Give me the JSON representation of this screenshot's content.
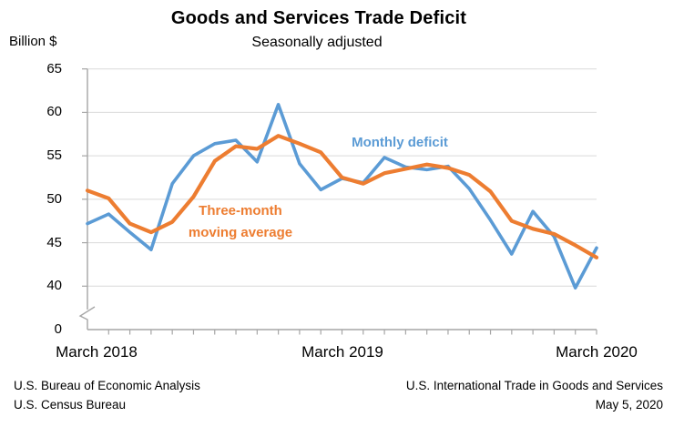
{
  "header": {
    "title": "Goods and Services Trade Deficit",
    "subtitle": "Seasonally adjusted",
    "y_axis_unit": "Billion $"
  },
  "footer": {
    "left": [
      "U.S. Bureau of Economic Analysis",
      "U.S. Census Bureau"
    ],
    "right": [
      "U.S. International Trade in Goods and Services",
      "May 5, 2020"
    ]
  },
  "chart_data": {
    "type": "line",
    "x": [
      "Mar 2018",
      "Apr 2018",
      "May 2018",
      "Jun 2018",
      "Jul 2018",
      "Aug 2018",
      "Sep 2018",
      "Oct 2018",
      "Nov 2018",
      "Dec 2018",
      "Jan 2019",
      "Feb 2019",
      "Mar 2019",
      "Apr 2019",
      "May 2019",
      "Jun 2019",
      "Jul 2019",
      "Aug 2019",
      "Sep 2019",
      "Oct 2019",
      "Nov 2019",
      "Dec 2019",
      "Jan 2020",
      "Feb 2020",
      "Mar 2020"
    ],
    "x_tick_labels": [
      "March 2018",
      "March 2019",
      "March 2020"
    ],
    "series": [
      {
        "name": "Monthly deficit",
        "color": "#5B9BD5",
        "values": [
          47.2,
          48.3,
          46.2,
          44.2,
          51.8,
          55.0,
          56.4,
          56.8,
          54.3,
          60.9,
          54.1,
          51.1,
          52.4,
          51.9,
          54.8,
          53.7,
          53.4,
          53.8,
          51.2,
          47.6,
          43.7,
          48.6,
          45.7,
          39.8,
          44.4
        ]
      },
      {
        "name": "Three-month moving average",
        "color": "#ED7D31",
        "values": [
          51.0,
          50.1,
          47.2,
          46.2,
          47.4,
          50.3,
          54.4,
          56.1,
          55.8,
          57.3,
          56.4,
          55.4,
          52.5,
          51.8,
          53.0,
          53.5,
          54.0,
          53.6,
          52.8,
          50.9,
          47.5,
          46.6,
          46.0,
          44.7,
          43.3
        ]
      }
    ],
    "ylabel": "Billion $",
    "y_ticks": [
      65,
      60,
      55,
      50,
      45,
      40,
      0
    ],
    "y_axis_break": true,
    "ylim_displayed": [
      40,
      65
    ],
    "grid": "horizontal",
    "axis_color": "#A6A6A6",
    "grid_color": "#D9D9D9"
  }
}
